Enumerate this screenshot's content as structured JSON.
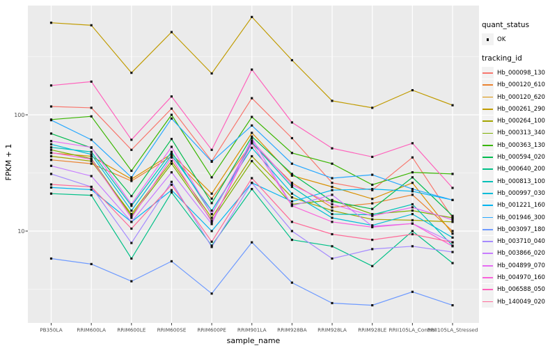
{
  "chart_data": {
    "type": "line",
    "title": "",
    "xlabel": "sample_name",
    "ylabel": "FPKM + 1",
    "y_scale": "log10",
    "y_major_ticks": [
      {
        "label": "10",
        "value": 10
      },
      {
        "label": "100",
        "value": 100
      }
    ],
    "y_minor_gridlines": [
      3.162,
      31.62,
      316.2
    ],
    "ylim_approx": [
      1.6,
      870
    ],
    "grid": true,
    "legend_position": "right",
    "categories": [
      "PB350LA",
      "RRIM600LA",
      "RRIM600LE",
      "RRIM600SE",
      "RRIM600PE",
      "RRIM901LA",
      "RRIM928BA",
      "RRIM928LA",
      "RRIM928LE",
      "RRII105LA_Control",
      "RRII105LA_Stressed"
    ],
    "series": [
      {
        "name": "Hb_000098_130",
        "color": "#F8766D",
        "values": [
          118,
          115,
          50,
          113,
          40,
          139,
          63,
          26,
          22.5,
          43,
          13
        ]
      },
      {
        "name": "Hb_000120_610",
        "color": "#EA8331",
        "values": [
          41,
          38,
          27,
          44,
          19,
          57,
          26,
          16,
          17.3,
          20.5,
          10
        ]
      },
      {
        "name": "Hb_000120_620",
        "color": "#D89000",
        "values": [
          47,
          44,
          28,
          46,
          21,
          70,
          30,
          24,
          18.9,
          26,
          9.5
        ]
      },
      {
        "name": "Hb_000261_290",
        "color": "#C09B00",
        "values": [
          620,
          590,
          230,
          515,
          227,
          695,
          295,
          132,
          115,
          163,
          121
        ]
      },
      {
        "name": "Hb_000264_100",
        "color": "#A3A500",
        "values": [
          44,
          40,
          14,
          40,
          13,
          44,
          19.5,
          15,
          12.6,
          12.4,
          12
        ]
      },
      {
        "name": "Hb_000313_340",
        "color": "#7CAE00",
        "values": [
          50,
          42,
          13.5,
          38,
          12.3,
          40,
          17,
          18.5,
          14,
          15,
          13
        ]
      },
      {
        "name": "Hb_000363_130",
        "color": "#39B600",
        "values": [
          91,
          97,
          33,
          100,
          29,
          96,
          47,
          38,
          25,
          32,
          31
        ]
      },
      {
        "name": "Hb_000594_020",
        "color": "#00BB4E",
        "values": [
          69,
          52,
          20,
          62,
          17.4,
          65,
          31,
          18,
          15.5,
          29,
          13.5
        ]
      },
      {
        "name": "Hb_000640_200",
        "color": "#00C087",
        "values": [
          21,
          20.3,
          5.8,
          21.5,
          7.5,
          23,
          8.4,
          7.4,
          5,
          10,
          5.3
        ]
      },
      {
        "name": "Hb_000813_100",
        "color": "#00C0B8",
        "values": [
          52.5,
          48,
          16.5,
          48,
          14,
          58,
          24,
          14,
          13.8,
          17,
          7.5
        ]
      },
      {
        "name": "Hb_000997_030",
        "color": "#00BCD8",
        "values": [
          55.8,
          45.7,
          15,
          45,
          15,
          52,
          21,
          13,
          11.2,
          14,
          8.8
        ]
      },
      {
        "name": "Hb_001221_160",
        "color": "#00B4F0",
        "values": [
          23.7,
          22.7,
          12,
          22.5,
          10,
          26,
          18,
          22.5,
          23,
          22,
          18.5
        ]
      },
      {
        "name": "Hb_001946_300",
        "color": "#27A8FF",
        "values": [
          90,
          61,
          29,
          93,
          39.5,
          81,
          38,
          28.5,
          30.5,
          23,
          18.5
        ]
      },
      {
        "name": "Hb_003097_180",
        "color": "#6E9AFF",
        "values": [
          5.8,
          5.2,
          3.7,
          5.5,
          2.9,
          8,
          3.6,
          2.4,
          2.3,
          3.0,
          2.3
        ]
      },
      {
        "name": "Hb_003710_040",
        "color": "#A58AFF",
        "values": [
          31,
          24,
          7.9,
          26.5,
          7.3,
          26,
          10,
          5.8,
          7,
          7.4,
          6.6
        ]
      },
      {
        "name": "Hb_003866_020",
        "color": "#C77CFF",
        "values": [
          36.4,
          29.7,
          12,
          32,
          11.5,
          63,
          16.5,
          20.5,
          11,
          11.6,
          8
        ]
      },
      {
        "name": "Hb_004899_070",
        "color": "#E76BF3",
        "values": [
          59.5,
          52.5,
          17,
          53,
          14,
          60,
          25,
          17,
          13.5,
          16,
          12.5
        ]
      },
      {
        "name": "Hb_004970_160",
        "color": "#FA62DB",
        "values": [
          47.3,
          41.5,
          13,
          43,
          12,
          57,
          16.5,
          12,
          10.8,
          11.6,
          7.4
        ]
      },
      {
        "name": "Hb_006588_050",
        "color": "#FF62BC",
        "values": [
          179,
          193,
          61,
          144,
          50,
          245,
          86,
          51.5,
          43.5,
          57,
          23.5
        ]
      },
      {
        "name": "Hb_140049_020",
        "color": "#FF6A98",
        "values": [
          25.2,
          24,
          10.5,
          25,
          8.1,
          28.5,
          12,
          9.4,
          8.4,
          9.4,
          8
        ]
      }
    ],
    "legend": {
      "quant_status_title": "quant_status",
      "quant_status_items": [
        {
          "label": "OK",
          "shape": "square-point"
        }
      ],
      "tracking_title": "tracking_id"
    }
  },
  "colors": {
    "panel_bg": "#EBEBEB",
    "gridline": "#FFFFFF",
    "legend_key_bg": "#F2F2F2",
    "tick_mark": "#333333",
    "tick_text": "#4D4D4D",
    "point": "#131313"
  }
}
